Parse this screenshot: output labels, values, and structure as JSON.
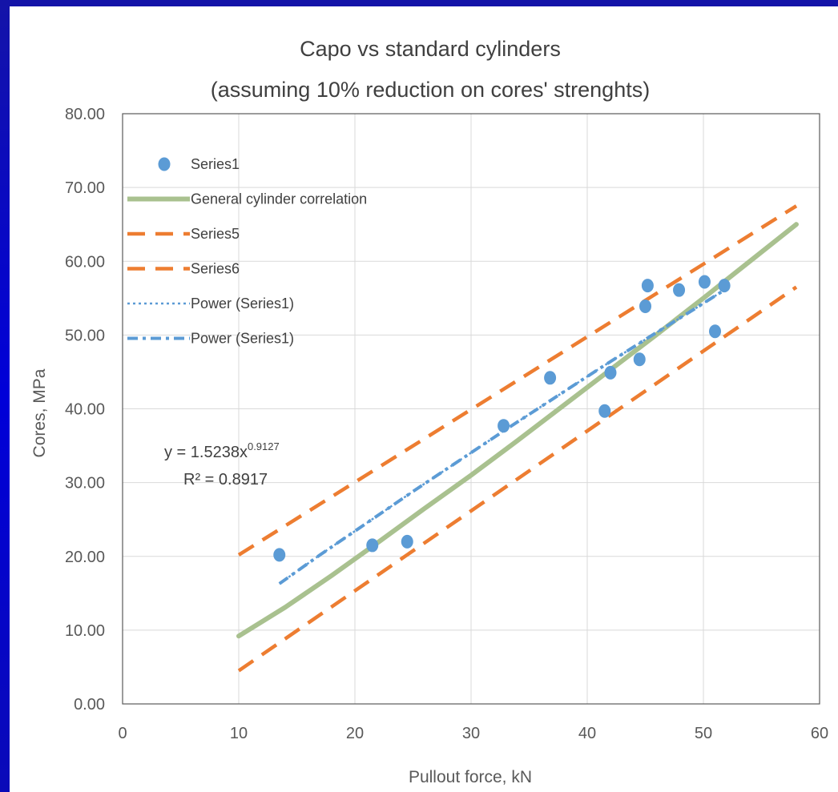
{
  "chart_data": {
    "type": "scatter",
    "title_lines": [
      "Capo vs standard cylinders",
      "(assuming 10% reduction on cores' strenghts)"
    ],
    "xlabel": "Pullout force, kN",
    "ylabel": "Cores, MPa",
    "xlim": [
      0,
      60
    ],
    "ylim": [
      0,
      80
    ],
    "x_ticks": [
      0,
      10,
      20,
      30,
      40,
      50,
      60
    ],
    "y_ticks": [
      0,
      10,
      20,
      30,
      40,
      50,
      60,
      70,
      80
    ],
    "y_tick_labels": [
      "0.00",
      "10.00",
      "20.00",
      "30.00",
      "40.00",
      "50.00",
      "60.00",
      "70.00",
      "80.00"
    ],
    "grid": true,
    "legend_position": "top-left",
    "series": [
      {
        "name": "Series1",
        "style": "markers",
        "color": "#5b9bd5",
        "x": [
          13.5,
          21.5,
          24.5,
          32.8,
          36.8,
          41.5,
          42.0,
          44.5,
          45.0,
          45.2,
          47.9,
          50.1,
          51.0,
          51.8
        ],
        "y": [
          20.2,
          21.5,
          22.0,
          37.7,
          44.2,
          39.7,
          44.9,
          46.7,
          53.9,
          56.7,
          56.1,
          57.2,
          50.5,
          56.7
        ]
      },
      {
        "name": "General cylinder correlation",
        "style": "solid",
        "color": "#a9c18f",
        "x": [
          10,
          14,
          18,
          22,
          26,
          30,
          34,
          38,
          42,
          46,
          50,
          54,
          58
        ],
        "y": [
          9.2,
          13.1,
          17.4,
          21.9,
          26.5,
          31.0,
          35.7,
          40.5,
          45.3,
          50.1,
          55.0,
          60.0,
          65.0
        ]
      },
      {
        "name": "Series5",
        "style": "dashed",
        "color": "#ed7d31",
        "x": [
          10,
          58
        ],
        "y": [
          20.2,
          67.5
        ]
      },
      {
        "name": "Series6",
        "style": "dashed",
        "color": "#ed7d31",
        "x": [
          10,
          58
        ],
        "y": [
          4.5,
          56.5
        ]
      },
      {
        "name": "Power (Series1)",
        "style": "dotted",
        "color": "#5b9bd5",
        "x": [
          13.5,
          17,
          21,
          25,
          29,
          33,
          37,
          41,
          45,
          49,
          51.8
        ],
        "y": [
          16.3,
          20.2,
          24.5,
          28.8,
          33.0,
          37.2,
          41.3,
          45.4,
          49.4,
          53.3,
          56.1
        ]
      },
      {
        "name": "Power (Series1)",
        "style": "dash-dot",
        "color": "#5b9bd5",
        "x": [
          13.5,
          17,
          21,
          25,
          29,
          33,
          37,
          41,
          45,
          49,
          51.8
        ],
        "y": [
          16.3,
          20.2,
          24.5,
          28.8,
          33.0,
          37.2,
          41.3,
          45.4,
          49.4,
          53.3,
          56.1
        ]
      }
    ],
    "equation": {
      "line1_prefix": "y = 1.5238x",
      "line1_exponent": "0.9127",
      "line2": "R² = 0.8917"
    }
  }
}
